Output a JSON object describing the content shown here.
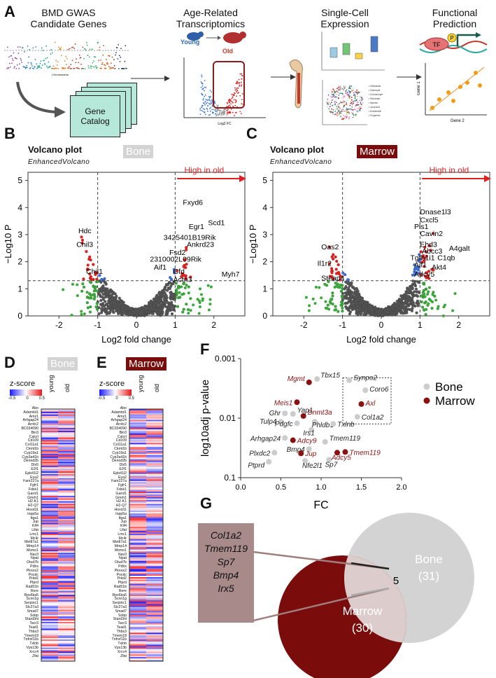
{
  "panelA": {
    "letter": "A",
    "steps": [
      "BMD GWAS\nCandidate Genes",
      "Age-Related\nTranscriptomics",
      "Single-Cell\nExpression",
      "Functional\nPrediction"
    ],
    "gene_catalog": "Gene\nCatalog",
    "young": "Young",
    "old": "Old",
    "log2fc": "Log2 FC",
    "tf": "TF",
    "p": "P",
    "gene1": "Gene 1",
    "gene2": "Gene 2",
    "chromosome": "Chromosome"
  },
  "volcanoB": {
    "letter": "B",
    "title": "Volcano plot",
    "subtitle": "EnhancedVolcano",
    "tag": "Bone",
    "tag_color": "#d3d3d3",
    "high_in_old": "High in old",
    "xlabel": "Log2 fold change",
    "ylabel": "−Log10 P",
    "xticks": [
      "-2",
      "-1",
      "0",
      "1",
      "2"
    ],
    "yticks": [
      "0",
      "1",
      "2",
      "3",
      "4",
      "5"
    ],
    "labels": [
      {
        "t": "Fxyd6",
        "x": 1.2,
        "y": 4.1
      },
      {
        "t": "Scd1",
        "x": 1.85,
        "y": 3.35
      },
      {
        "t": "Egr1",
        "x": 1.35,
        "y": 3.2
      },
      {
        "t": "3425401B19Rik",
        "x": 0.7,
        "y": 2.8
      },
      {
        "t": "Ankrd23",
        "x": 1.3,
        "y": 2.55
      },
      {
        "t": "Fsd2",
        "x": 0.85,
        "y": 2.25
      },
      {
        "t": "2310002L09Rik",
        "x": 0.35,
        "y": 2.0
      },
      {
        "t": "Aif1",
        "x": 0.45,
        "y": 1.7
      },
      {
        "t": "Cfd",
        "x": 0.95,
        "y": 1.55
      },
      {
        "t": "Myh7",
        "x": 2.2,
        "y": 1.45
      },
      {
        "t": "Actn3",
        "x": 0.95,
        "y": 1.25
      },
      {
        "t": "Hdc",
        "x": -1.5,
        "y": 3.05
      },
      {
        "t": "Chil3",
        "x": -1.55,
        "y": 2.55
      },
      {
        "t": "Chil1",
        "x": -1.3,
        "y": 1.55
      }
    ]
  },
  "volcanoC": {
    "letter": "C",
    "title": "Volcano plot",
    "subtitle": "EnhancedVolcano",
    "tag": "Marrow",
    "tag_color": "#7a0c0c",
    "high_in_old": "High in old",
    "xlabel": "Log2 fold change",
    "ylabel": "−Log10 P",
    "xticks": [
      "-2",
      "-1",
      "0",
      "1",
      "2"
    ],
    "yticks": [
      "0",
      "1",
      "2",
      "3",
      "4",
      "5"
    ],
    "labels": [
      {
        "t": "Dnase1l3",
        "x": 1.0,
        "y": 3.75
      },
      {
        "t": "Cxcl5",
        "x": 1.0,
        "y": 3.45
      },
      {
        "t": "Pls1",
        "x": 0.85,
        "y": 3.2
      },
      {
        "t": "Cavin2",
        "x": 1.0,
        "y": 2.95
      },
      {
        "t": "Ehd3",
        "x": 1.0,
        "y": 2.55
      },
      {
        "t": "A4galt",
        "x": 1.75,
        "y": 2.4
      },
      {
        "t": "Abcc3",
        "x": 1.05,
        "y": 2.3
      },
      {
        "t": "C1qb",
        "x": 1.45,
        "y": 2.05
      },
      {
        "t": "Tgfb1i1",
        "x": 0.75,
        "y": 2.05
      },
      {
        "t": "Aif1",
        "x": 0.85,
        "y": 1.8
      },
      {
        "t": "Akt4",
        "x": 1.3,
        "y": 1.7
      },
      {
        "t": "Adcy5",
        "x": 0.85,
        "y": 1.45
      },
      {
        "t": "Oas2",
        "x": -1.55,
        "y": 2.45
      },
      {
        "t": "Il1r2",
        "x": -1.65,
        "y": 1.85
      },
      {
        "t": "Steap4",
        "x": -1.55,
        "y": 1.3
      }
    ]
  },
  "heatmapD": {
    "letter": "D",
    "tag": "Bone",
    "tag_color": "#d3d3d3",
    "legend_title": "z-score",
    "legend_ticks": [
      "-0.5",
      "0",
      "0.5"
    ],
    "cols": [
      "young",
      "old"
    ]
  },
  "heatmapE": {
    "letter": "E",
    "tag": "Marrow",
    "tag_color": "#7a0c0c",
    "legend_title": "z-score",
    "legend_ticks": [
      "-0.5",
      "0",
      "0.5"
    ],
    "cols": [
      "young",
      "old"
    ]
  },
  "heatmap_genes": [
    "Abo",
    "Adamtsl1",
    "Amz1",
    "Arhgap24",
    "Arrdc2",
    "BC034090",
    "Bin3",
    "Calcrl",
    "Cd109",
    "Col11a1",
    "Ckmt1b",
    "Cyp19a1",
    "Cyp3a41b",
    "Dennd2b",
    "Dlx5",
    "E2f1",
    "Epb41l2",
    "Eya2",
    "Fam227a",
    "Fgfr1",
    "Fdxk1",
    "Garnl1",
    "Gmrh1",
    "H2-K1",
    "H2-Q7",
    "Hoxd11",
    "Inpp5a",
    "Itga1",
    "Jup",
    "Klf4",
    "Lifat",
    "Lmc1",
    "Mc4r",
    "Mettl7a1",
    "Mmp14",
    "Msmo1",
    "Nav3",
    "Npat",
    "Otud7b",
    "Pdhx",
    "Pknox2",
    "Pocdc",
    "Prkd2",
    "Ptprd",
    "Rad51b",
    "Rere",
    "Rps6ka5",
    "Scnn1g",
    "Serpinc1",
    "Slc27a3",
    "Smad7",
    "Sobp",
    "Stard3nl",
    "Tacr3",
    "Tead1",
    "Thbs3",
    "Tmem18",
    "Tnfrsf11b",
    "Txlnb",
    "Vps13b",
    "Xrcc4",
    "Zfat"
  ],
  "chart_data": [
    {
      "type": "scatter",
      "panel": "F",
      "title": "",
      "xlabel": "FC",
      "ylabel": "log10adj p-value",
      "xlim": [
        0.0,
        2.0
      ],
      "ylim_log": [
        0.1,
        0.001
      ],
      "xticks": [
        "0.0",
        "0.5",
        "1.0",
        "1.5",
        "2.0"
      ],
      "yticks": [
        "0.001",
        "0.01",
        "0.1"
      ],
      "legend": [
        {
          "name": "Bone",
          "color": "#cccccc"
        },
        {
          "name": "Marrow",
          "color": "#8b1010"
        }
      ],
      "series": [
        {
          "name": "Bone",
          "color": "#cccccc",
          "points": [
            {
              "gene": "Tbx15",
              "fc": 0.95,
              "p": 0.0022
            },
            {
              "gene": "Synpo2",
              "fc": 1.35,
              "p": 0.0023
            },
            {
              "gene": "Coro6",
              "fc": 1.55,
              "p": 0.0034
            },
            {
              "gene": "Col1a2",
              "fc": 1.45,
              "p": 0.0095
            },
            {
              "gene": "Ghr",
              "fc": 0.55,
              "p": 0.0083
            },
            {
              "gene": "Yap1",
              "fc": 0.65,
              "p": 0.0085
            },
            {
              "gene": "Tulp4",
              "fc": 0.5,
              "p": 0.0115
            },
            {
              "gene": "Pdgfc",
              "fc": 0.7,
              "p": 0.0122
            },
            {
              "gene": "Phldb1",
              "fc": 0.92,
              "p": 0.0115
            },
            {
              "gene": "Txlnb",
              "fc": 1.15,
              "p": 0.0125
            },
            {
              "gene": "Irs1",
              "fc": 0.88,
              "p": 0.0157
            },
            {
              "gene": "Arhgap24",
              "fc": 0.55,
              "p": 0.0215
            },
            {
              "gene": "Tmem119",
              "fc": 1.05,
              "p": 0.025
            },
            {
              "gene": "Bmp4",
              "fc": 0.85,
              "p": 0.033
            },
            {
              "gene": "Plxdc2",
              "fc": 0.42,
              "p": 0.038
            },
            {
              "gene": "Ptprd",
              "fc": 0.35,
              "p": 0.054
            },
            {
              "gene": "Nfe2l1",
              "fc": 0.8,
              "p": 0.052
            },
            {
              "gene": "Sp7",
              "fc": 1.1,
              "p": 0.05
            }
          ]
        },
        {
          "name": "Marrow",
          "color": "#8b1010",
          "points": [
            {
              "gene": "Mgmt",
              "fc": 0.85,
              "p": 0.0025
            },
            {
              "gene": "Meis1",
              "fc": 0.7,
              "p": 0.0054
            },
            {
              "gene": "Axl",
              "fc": 1.5,
              "p": 0.0058
            },
            {
              "gene": "Dnmt3a",
              "fc": 0.78,
              "p": 0.0092
            },
            {
              "gene": "Adcy9",
              "fc": 0.65,
              "p": 0.0235
            },
            {
              "gene": "Jup",
              "fc": 0.75,
              "p": 0.039
            },
            {
              "gene": "Tmem119",
              "fc": 1.3,
              "p": 0.037
            },
            {
              "gene": "Adcy5",
              "fc": 1.2,
              "p": 0.038
            }
          ]
        }
      ]
    }
  ],
  "vennG": {
    "letter": "G",
    "bone_label": "Bone",
    "bone_count": "(31)",
    "marrow_label": "Marrow",
    "marrow_count": "(30)",
    "overlap_count": "5",
    "shared_genes": [
      "Col1a2",
      "Tmem119",
      "Sp7",
      "Bmp4",
      "Irx5"
    ]
  },
  "colors": {
    "sig_red": "#e02020",
    "sig_blue": "#3b6fd8",
    "green": "#3aa83a",
    "grey": "#555555",
    "bone": "#d0d0d0",
    "marrow": "#7a0c0c"
  }
}
